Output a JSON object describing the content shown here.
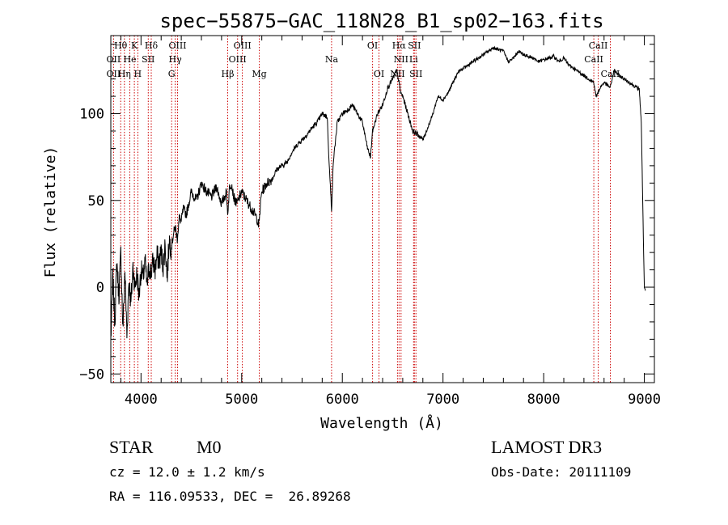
{
  "chart_data": {
    "type": "line",
    "title": "spec−55875−GAC_118N28_B1_sp02−163.fits",
    "xlabel": "Wavelength (Å)",
    "ylabel": "Flux (relative)",
    "xlim": [
      3700,
      9100
    ],
    "ylim": [
      -55,
      145
    ],
    "xticks": [
      4000,
      5000,
      6000,
      7000,
      8000,
      9000
    ],
    "yticks": [
      -50,
      0,
      50,
      100
    ],
    "grid": false,
    "series": [
      {
        "name": "spectrum",
        "x": [
          3700,
          3720,
          3740,
          3760,
          3780,
          3800,
          3820,
          3840,
          3860,
          3880,
          3900,
          3920,
          3940,
          3960,
          3980,
          4000,
          4020,
          4040,
          4060,
          4080,
          4100,
          4120,
          4140,
          4160,
          4180,
          4200,
          4220,
          4240,
          4260,
          4280,
          4300,
          4320,
          4340,
          4360,
          4380,
          4400,
          4420,
          4450,
          4500,
          4550,
          4600,
          4650,
          4700,
          4750,
          4800,
          4850,
          4860,
          4880,
          4900,
          4920,
          4950,
          5000,
          5050,
          5100,
          5150,
          5170,
          5190,
          5200,
          5250,
          5300,
          5350,
          5400,
          5450,
          5500,
          5550,
          5600,
          5650,
          5700,
          5750,
          5800,
          5850,
          5870,
          5893,
          5910,
          5950,
          6000,
          6050,
          6100,
          6150,
          6200,
          6250,
          6280,
          6300,
          6350,
          6400,
          6450,
          6500,
          6540,
          6563,
          6580,
          6600,
          6650,
          6700,
          6750,
          6800,
          6850,
          6900,
          6950,
          7000,
          7050,
          7100,
          7150,
          7200,
          7250,
          7300,
          7350,
          7400,
          7450,
          7500,
          7550,
          7600,
          7650,
          7700,
          7750,
          7800,
          7850,
          7900,
          7950,
          8000,
          8050,
          8100,
          8150,
          8200,
          8250,
          8300,
          8350,
          8400,
          8450,
          8498,
          8520,
          8542,
          8560,
          8600,
          8662,
          8680,
          8700,
          8750,
          8800,
          8850,
          8900,
          8950,
          8970,
          8990,
          9000,
          9010
        ],
        "values": [
          -30,
          5,
          -20,
          15,
          -5,
          20,
          -25,
          10,
          -28,
          5,
          -10,
          12,
          0,
          8,
          -5,
          10,
          5,
          15,
          0,
          12,
          8,
          15,
          10,
          18,
          15,
          20,
          12,
          25,
          5,
          28,
          22,
          30,
          35,
          28,
          40,
          38,
          45,
          42,
          55,
          50,
          60,
          55,
          52,
          58,
          48,
          55,
          42,
          58,
          60,
          52,
          48,
          55,
          50,
          45,
          40,
          35,
          50,
          55,
          60,
          62,
          68,
          70,
          72,
          78,
          82,
          85,
          88,
          92,
          95,
          100,
          98,
          70,
          45,
          72,
          95,
          100,
          102,
          105,
          100,
          95,
          80,
          75,
          90,
          100,
          105,
          115,
          120,
          125,
          118,
          112,
          110,
          100,
          90,
          88,
          85,
          92,
          100,
          110,
          108,
          112,
          118,
          124,
          126,
          128,
          130,
          132,
          134,
          136,
          138,
          137,
          136,
          130,
          132,
          136,
          134,
          133,
          132,
          130,
          131,
          132,
          133,
          130,
          132,
          128,
          126,
          124,
          122,
          120,
          118,
          110,
          112,
          115,
          118,
          115,
          120,
          125,
          122,
          120,
          118,
          116,
          114,
          95,
          30,
          0,
          -2
        ]
      }
    ],
    "lines": [
      {
        "label": "Hθ",
        "x": 3798,
        "row": 0
      },
      {
        "label": "OII",
        "x": 3727,
        "row": 1
      },
      {
        "label": "OII",
        "x": 3727,
        "row": 2
      },
      {
        "label": "K",
        "x": 3934,
        "row": 0
      },
      {
        "label": "He",
        "x": 3889,
        "row": 1
      },
      {
        "label": "Hη",
        "x": 3835,
        "row": 2
      },
      {
        "label": "SII",
        "x": 4072,
        "row": 1
      },
      {
        "label": "H",
        "x": 3968,
        "row": 2
      },
      {
        "label": "Hδ",
        "x": 4102,
        "row": 0
      },
      {
        "label": "OIII",
        "x": 4363,
        "row": 0
      },
      {
        "label": "Hγ",
        "x": 4340,
        "row": 1
      },
      {
        "label": "G",
        "x": 4304,
        "row": 2
      },
      {
        "label": "Hβ",
        "x": 4861,
        "row": 2
      },
      {
        "label": "OIII",
        "x": 5007,
        "row": 0
      },
      {
        "label": "OIII",
        "x": 4959,
        "row": 1
      },
      {
        "label": "Mg",
        "x": 5175,
        "row": 2
      },
      {
        "label": "Na",
        "x": 5893,
        "row": 1
      },
      {
        "label": "OI",
        "x": 6300,
        "row": 0
      },
      {
        "label": "OI",
        "x": 6364,
        "row": 2
      },
      {
        "label": "Hα",
        "x": 6563,
        "row": 0
      },
      {
        "label": "SII",
        "x": 6716,
        "row": 0
      },
      {
        "label": "NII",
        "x": 6583,
        "row": 1
      },
      {
        "label": "Li",
        "x": 6708,
        "row": 1
      },
      {
        "label": "NII",
        "x": 6548,
        "row": 2
      },
      {
        "label": "SII",
        "x": 6731,
        "row": 2
      },
      {
        "label": "CaII",
        "x": 8542,
        "row": 0
      },
      {
        "label": "CaII",
        "x": 8498,
        "row": 1
      },
      {
        "label": "CaII",
        "x": 8662,
        "row": 2
      }
    ]
  },
  "info": {
    "class_label": "STAR",
    "subclass": "M0",
    "survey": "LAMOST DR3",
    "cz": "cz = 12.0 ± 1.2 km/s",
    "obs_date": "Obs-Date: 20111109",
    "radec": "RA = 116.09533, DEC =  26.89268"
  },
  "colors": {
    "line_marker": "#cc0000",
    "spectrum": "#000000",
    "axes": "#000000"
  }
}
